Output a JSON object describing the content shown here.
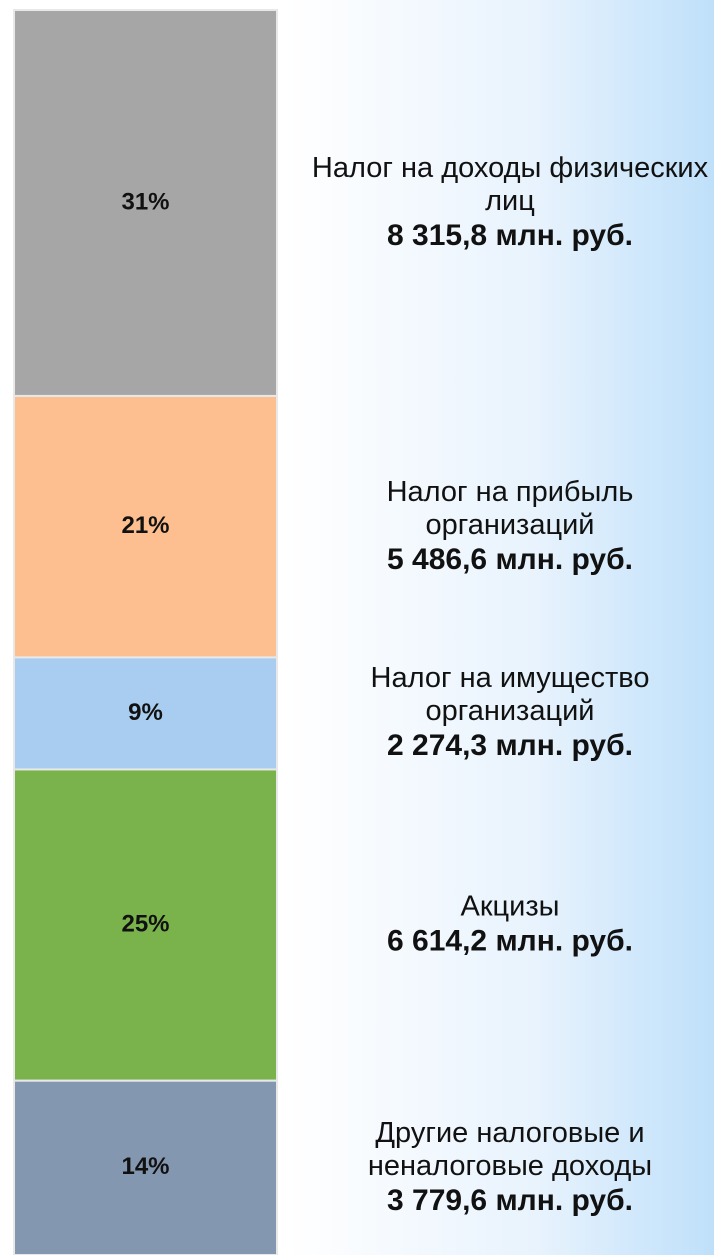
{
  "chart_data": {
    "type": "stacked_bar",
    "ylim": [
      0,
      100
    ],
    "series": [
      {
        "name": "Налог на доходы физических лиц",
        "color": "#a6a6a6",
        "values": [
          31
        ],
        "value_labels": [
          "31%"
        ],
        "amount": "8 315,8 млн. руб."
      },
      {
        "name": "Налог на прибыль организаций",
        "color": "#fdbf8f",
        "values": [
          21
        ],
        "value_labels": [
          "21%"
        ],
        "amount": "5 486,6 млн. руб."
      },
      {
        "name": "Налог на имущество организаций",
        "color": "#a9cdf0",
        "values": [
          9
        ],
        "value_labels": [
          "9%"
        ],
        "amount": "2 274,3 млн. руб."
      },
      {
        "name": "Акцизы",
        "color": "#7ab34c",
        "values": [
          25
        ],
        "value_labels": [
          "25%"
        ],
        "amount": "6 614,2 млн. руб."
      },
      {
        "name": "Другие налоговые и неналоговые доходы",
        "color": "#8497b0",
        "values": [
          14
        ],
        "value_labels": [
          "14%"
        ],
        "amount": "3 779,6 млн. руб."
      }
    ]
  }
}
